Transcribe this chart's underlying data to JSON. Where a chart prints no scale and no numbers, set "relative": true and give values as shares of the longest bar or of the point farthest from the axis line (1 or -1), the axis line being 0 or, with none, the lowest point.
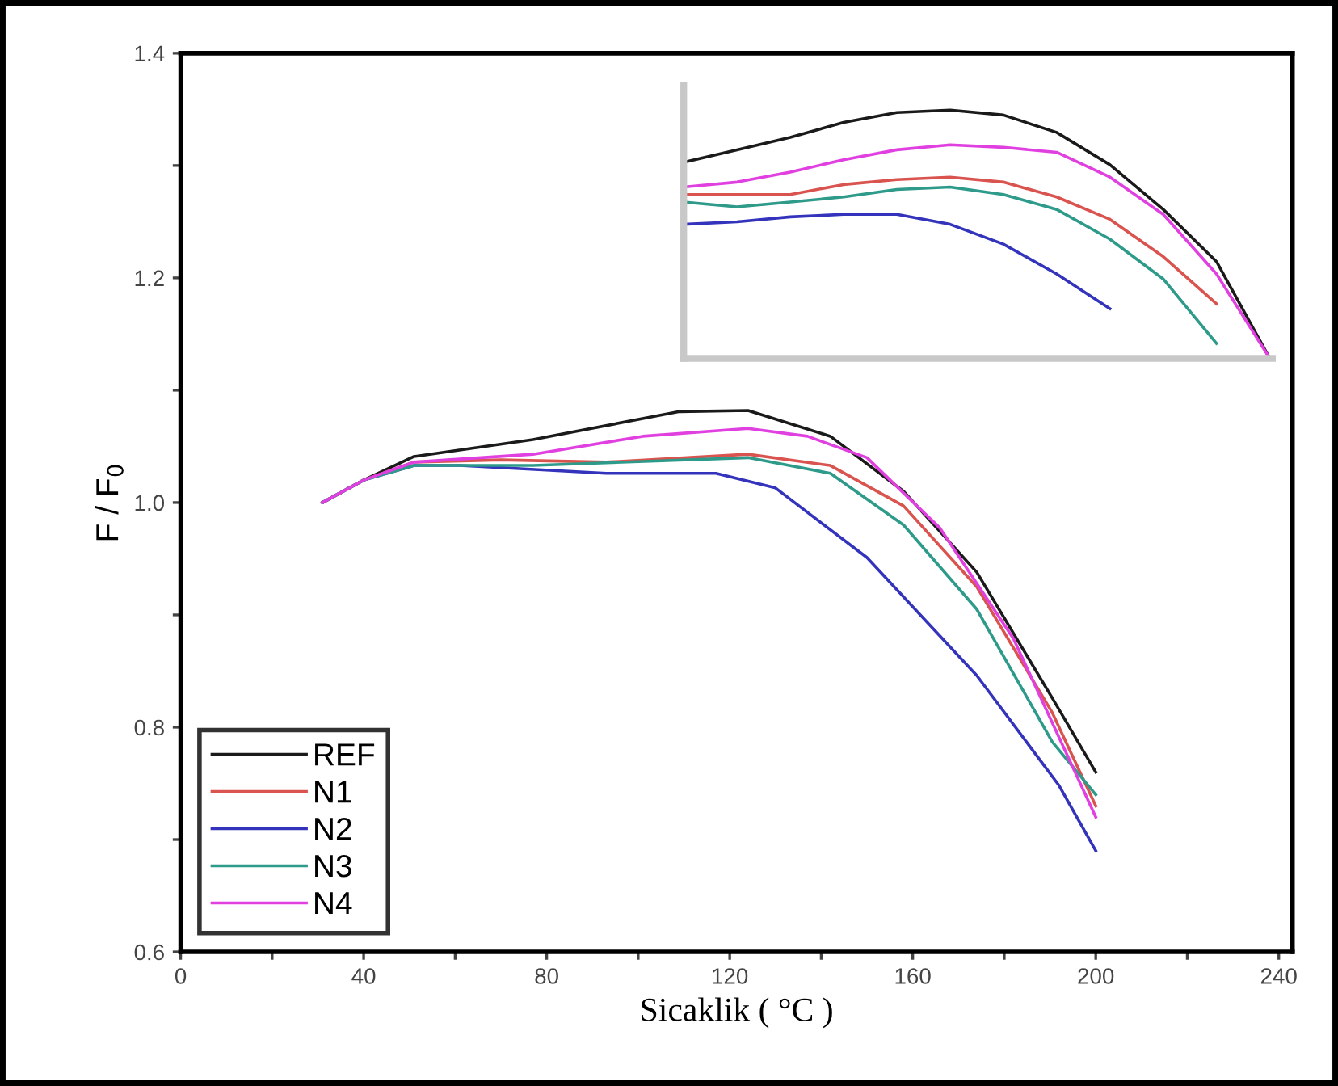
{
  "chart_data": [
    {
      "type": "line",
      "xlabel": "Sicaklik ( °C )",
      "ylabel": "F / F$_{0}$",
      "xlim": [
        0,
        243
      ],
      "ylim": [
        0.6,
        1.4
      ],
      "xticks": [
        0,
        {
          "value": 20,
          "label": null
        },
        40,
        {
          "value": 60,
          "label": null
        },
        80,
        {
          "value": 100,
          "label": null
        },
        120,
        {
          "value": 140,
          "label": null
        },
        160,
        {
          "value": 180,
          "label": null
        },
        200,
        {
          "value": 220,
          "label": null
        },
        240
      ],
      "yticks": [
        0.6,
        {
          "value": 0.7,
          "label": null
        },
        0.8,
        {
          "value": 0.9,
          "label": null
        },
        {
          "value": 1.0,
          "label": "1.0"
        },
        {
          "value": 1.1,
          "label": null
        },
        1.2,
        {
          "value": 1.3,
          "label": null
        },
        1.4
      ],
      "grid": false,
      "legend": "bottom left",
      "series": [
        {
          "name": "REF",
          "color": "#1a1a1a",
          "x": [
            31,
            40,
            51,
            77,
            109,
            124,
            142,
            158,
            174,
            190.5,
            200
          ],
          "values": [
            1.0,
            1.02,
            1.041,
            1.056,
            1.081,
            1.082,
            1.059,
            1.01,
            0.938,
            0.826,
            0.76
          ]
        },
        {
          "name": "N1",
          "color": "#d9534f",
          "x": [
            31,
            40,
            51,
            70,
            93,
            124,
            142,
            158,
            174,
            190.5,
            200
          ],
          "values": [
            1.0,
            1.02,
            1.036,
            1.038,
            1.036,
            1.043,
            1.033,
            0.997,
            0.925,
            0.813,
            0.73
          ]
        },
        {
          "name": "N2",
          "color": "#3333bb",
          "x": [
            31,
            40,
            51,
            61,
            93,
            117,
            130,
            150,
            174,
            192,
            200
          ],
          "values": [
            1.0,
            1.02,
            1.033,
            1.033,
            1.026,
            1.026,
            1.013,
            0.951,
            0.846,
            0.748,
            0.69
          ]
        },
        {
          "name": "N3",
          "color": "#2e9a8a",
          "x": [
            31,
            40,
            51,
            77,
            124,
            142,
            158,
            174,
            190.5,
            200
          ],
          "values": [
            1.0,
            1.02,
            1.033,
            1.033,
            1.04,
            1.026,
            0.98,
            0.905,
            0.787,
            0.74
          ]
        },
        {
          "name": "N4",
          "color": "#e040e0",
          "x": [
            31,
            40,
            51,
            77,
            101,
            124,
            137,
            150,
            166,
            182,
            200
          ],
          "values": [
            1.0,
            1.02,
            1.036,
            1.043,
            1.059,
            1.066,
            1.059,
            1.04,
            0.977,
            0.879,
            0.72
          ]
        }
      ]
    },
    {
      "type": "line",
      "relative": true,
      "grid": false,
      "legend": false,
      "categories": [
        null,
        null,
        null,
        null,
        null,
        null,
        null,
        null,
        null,
        null,
        null,
        null
      ],
      "series": [
        {
          "color": "#1a1a1a",
          "values": [
            0.79,
            0.84,
            0.89,
            0.95,
            0.99,
            1.0,
            0.98,
            0.91,
            0.78,
            0.6,
            0.39,
            0
          ]
        },
        {
          "color": "#d9534f",
          "values": [
            0.66,
            0.66,
            0.66,
            0.7,
            0.72,
            0.73,
            0.71,
            0.65,
            0.56,
            0.41,
            0.22,
            null
          ]
        },
        {
          "color": "#3333bb",
          "values": [
            0.54,
            0.55,
            0.57,
            0.58,
            0.58,
            0.54,
            0.46,
            0.34,
            0.2,
            null,
            null,
            null
          ]
        },
        {
          "color": "#2e9a8a",
          "values": [
            0.63,
            0.61,
            0.63,
            0.65,
            0.68,
            0.69,
            0.66,
            0.6,
            0.48,
            0.32,
            0.06,
            null
          ]
        },
        {
          "color": "#e040e0",
          "values": [
            0.69,
            0.71,
            0.75,
            0.8,
            0.84,
            0.86,
            0.85,
            0.83,
            0.73,
            0.58,
            0.34,
            0
          ]
        }
      ]
    }
  ]
}
